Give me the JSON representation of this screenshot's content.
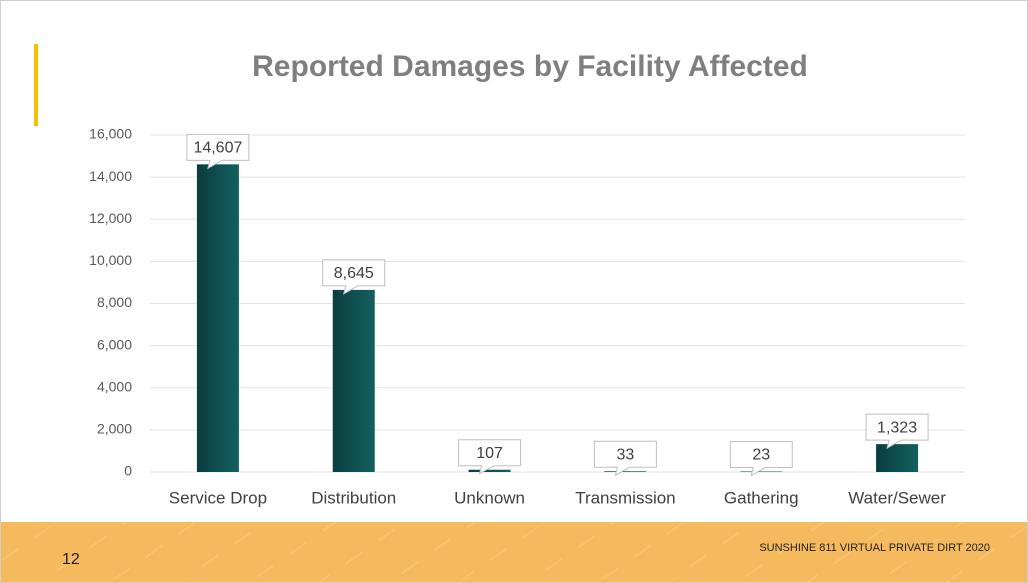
{
  "chart_data": {
    "type": "bar",
    "title": "Reported Damages by Facility Affected",
    "categories": [
      "Service Drop",
      "Distribution",
      "Unknown",
      "Transmission",
      "Gathering",
      "Water/Sewer"
    ],
    "values": [
      14607,
      8645,
      107,
      33,
      23,
      1323
    ],
    "value_labels": [
      "14,607",
      "8,645",
      "107",
      "33",
      "23",
      "1,323"
    ],
    "color": "#14605f",
    "ylim": [
      0,
      16000
    ],
    "yticks": [
      0,
      {
        "value": 2000,
        "label": "2,000"
      },
      {
        "value": 4000,
        "label": "4,000"
      },
      {
        "value": 6000,
        "label": "6,000"
      },
      {
        "value": 8000,
        "label": "8,000"
      },
      {
        "value": 10000,
        "label": "10,000"
      },
      {
        "value": 12000,
        "label": "12,000"
      },
      {
        "value": 14000,
        "label": "14,000"
      },
      {
        "value": 16000,
        "label": "16,000"
      }
    ],
    "grid": true
  },
  "footer": {
    "page_number": "12",
    "text": "SUNSHINE 811 VIRTUAL PRIVATE DIRT 2020"
  }
}
